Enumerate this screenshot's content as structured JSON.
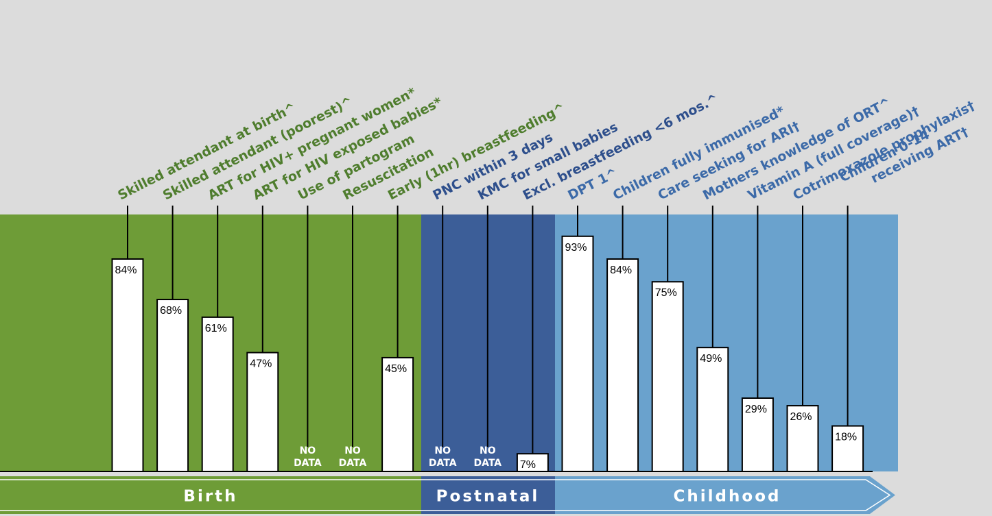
{
  "colors": {
    "background": "#dcdcdc",
    "birth": "#6e9c37",
    "postnatal": "#3c5e98",
    "childhood": "#6aa2cd",
    "birth_text": "#4f7d2e",
    "postnatal_text": "#2e4f8c",
    "childhood_text": "#3c6aa8"
  },
  "stages": [
    {
      "name": "Birth",
      "color": "#6e9c37"
    },
    {
      "name": "Postnatal",
      "color": "#3c5e98"
    },
    {
      "name": "Childhood",
      "color": "#6aa2cd"
    }
  ],
  "no_data_label": [
    "NO",
    "DATA"
  ],
  "chart_data": {
    "type": "bar",
    "ylim": [
      0,
      100
    ],
    "categories": [
      {
        "label": "Skilled attendant at birth^",
        "value": 84,
        "display": "84%",
        "stage": "Birth"
      },
      {
        "label": "Skilled attendant (poorest)^",
        "value": 68,
        "display": "68%",
        "stage": "Birth"
      },
      {
        "label": "ART for HIV+ pregnant women*",
        "value": 61,
        "display": "61%",
        "stage": "Birth"
      },
      {
        "label": "ART for HIV exposed babies*",
        "value": 47,
        "display": "47%",
        "stage": "Birth"
      },
      {
        "label": "Use of partogram",
        "value": null,
        "display": "",
        "stage": "Birth"
      },
      {
        "label": "Resuscitation",
        "value": null,
        "display": "",
        "stage": "Birth"
      },
      {
        "label": "Early (1hr) breastfeeding^",
        "value": 45,
        "display": "45%",
        "stage": "Birth"
      },
      {
        "label": "PNC within 3 days",
        "value": null,
        "display": "",
        "stage": "Postnatal"
      },
      {
        "label": "KMC for small babies",
        "value": null,
        "display": "",
        "stage": "Postnatal"
      },
      {
        "label": "Excl. breastfeeding <6 mos.^",
        "value": 7,
        "display": "7%",
        "stage": "Postnatal"
      },
      {
        "label": "DPT 1^",
        "value": 93,
        "display": "93%",
        "stage": "Childhood"
      },
      {
        "label": "Children fully immunised*",
        "value": 84,
        "display": "84%",
        "stage": "Childhood"
      },
      {
        "label": "Care seeking for ARI†",
        "value": 75,
        "display": "75%",
        "stage": "Childhood"
      },
      {
        "label": "Mothers knowledge of ORT^",
        "value": 49,
        "display": "49%",
        "stage": "Childhood"
      },
      {
        "label": "Vitamin A (full coverage)†",
        "value": 29,
        "display": "29%",
        "stage": "Childhood"
      },
      {
        "label": "Cotrimoxazole prophylaxis†",
        "value": 26,
        "display": "26%",
        "stage": "Childhood"
      },
      {
        "label": "Children 0-14 receiving ART†",
        "value": 18,
        "display": "18%",
        "stage": "Childhood"
      }
    ]
  }
}
